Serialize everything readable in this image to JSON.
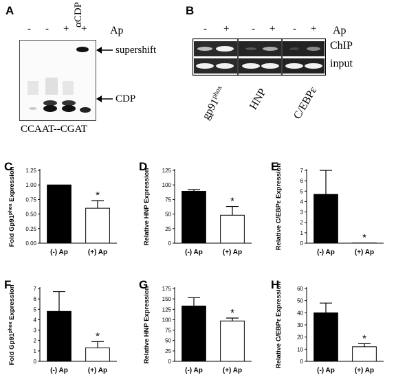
{
  "panels": {
    "A": {
      "label": "A",
      "lane_signs": [
        "-",
        "-",
        "+",
        "+"
      ],
      "supershift_lane_label": "αCDP",
      "ap_label": "Ap",
      "supershift_label": "supershift",
      "cdp_label": "CDP",
      "probe_label": "CCAAT--CGAT"
    },
    "B": {
      "label": "B",
      "lane_signs": [
        "-",
        "+",
        "-",
        "+",
        "-",
        "+"
      ],
      "ap_label": "Ap",
      "chip_label": "ChIP",
      "input_label": "input",
      "genes": [
        "gp91",
        "HNP",
        "C/EBPε"
      ],
      "gene_superscript": "phox"
    }
  },
  "chart_data": [
    {
      "id": "C",
      "panel_label": "C",
      "type": "bar",
      "categories": [
        "(-) Ap",
        "(+) Ap"
      ],
      "values": [
        1.0,
        0.6
      ],
      "errors": [
        0,
        0.13
      ],
      "colors": [
        "#000000",
        "#ffffff"
      ],
      "ylabel": "Fold Gp91",
      "ylabel_sup": "phox",
      "ylabel_tail": " Expression",
      "ylim": [
        0,
        1.25
      ],
      "yticks": [
        "0.00",
        "0.25",
        "0.50",
        "0.75",
        "1.00",
        "1.25"
      ],
      "significance": "*"
    },
    {
      "id": "D",
      "panel_label": "D",
      "type": "bar",
      "categories": [
        "(-) Ap",
        "(+) Ap"
      ],
      "values": [
        89,
        48
      ],
      "errors": [
        3,
        15
      ],
      "colors": [
        "#000000",
        "#ffffff"
      ],
      "ylabel": "Relative HNP Expression",
      "ylabel_sup": "",
      "ylabel_tail": "",
      "ylim": [
        0,
        125
      ],
      "yticks": [
        "0",
        "25",
        "50",
        "75",
        "100",
        "125"
      ],
      "significance": "*"
    },
    {
      "id": "E",
      "panel_label": "E",
      "type": "bar",
      "categories": [
        "(-) Ap",
        "(+) Ap"
      ],
      "values": [
        4.7,
        0.02
      ],
      "errors": [
        2.3,
        0
      ],
      "colors": [
        "#000000",
        "#ffffff"
      ],
      "ylabel": "Relative C/EBPε Expression",
      "ylabel_sup": "",
      "ylabel_tail": "",
      "ylim": [
        0,
        7
      ],
      "yticks": [
        "0",
        "1",
        "2",
        "3",
        "4",
        "5",
        "6",
        "7"
      ],
      "significance": "*"
    },
    {
      "id": "F",
      "panel_label": "F",
      "type": "bar",
      "categories": [
        "(-) Ap",
        "(+) Ap"
      ],
      "values": [
        4.8,
        1.3
      ],
      "errors": [
        1.9,
        0.6
      ],
      "colors": [
        "#000000",
        "#ffffff"
      ],
      "ylabel": "Fold Gp91",
      "ylabel_sup": "phox",
      "ylabel_tail": " Expression",
      "ylim": [
        0,
        7
      ],
      "yticks": [
        "0",
        "1",
        "2",
        "3",
        "4",
        "5",
        "6",
        "7"
      ],
      "significance": "*"
    },
    {
      "id": "G",
      "panel_label": "G",
      "type": "bar",
      "categories": [
        "(-) Ap",
        "(+) Ap"
      ],
      "values": [
        133,
        97
      ],
      "errors": [
        20,
        7
      ],
      "colors": [
        "#000000",
        "#ffffff"
      ],
      "ylabel": "Relative HNP Expression",
      "ylabel_sup": "",
      "ylabel_tail": "",
      "ylim": [
        0,
        175
      ],
      "yticks": [
        "0",
        "25",
        "50",
        "75",
        "100",
        "125",
        "150",
        "175"
      ],
      "significance": "*"
    },
    {
      "id": "H",
      "panel_label": "H",
      "type": "bar",
      "categories": [
        "(-) Ap",
        "(+) Ap"
      ],
      "values": [
        40,
        12
      ],
      "errors": [
        8,
        2.5
      ],
      "colors": [
        "#000000",
        "#ffffff"
      ],
      "ylabel": "Relative C/EBPε Expression",
      "ylabel_sup": "",
      "ylabel_tail": "",
      "ylim": [
        0,
        60
      ],
      "yticks": [
        "0",
        "10",
        "20",
        "30",
        "40",
        "50",
        "60"
      ],
      "significance": "*"
    }
  ]
}
